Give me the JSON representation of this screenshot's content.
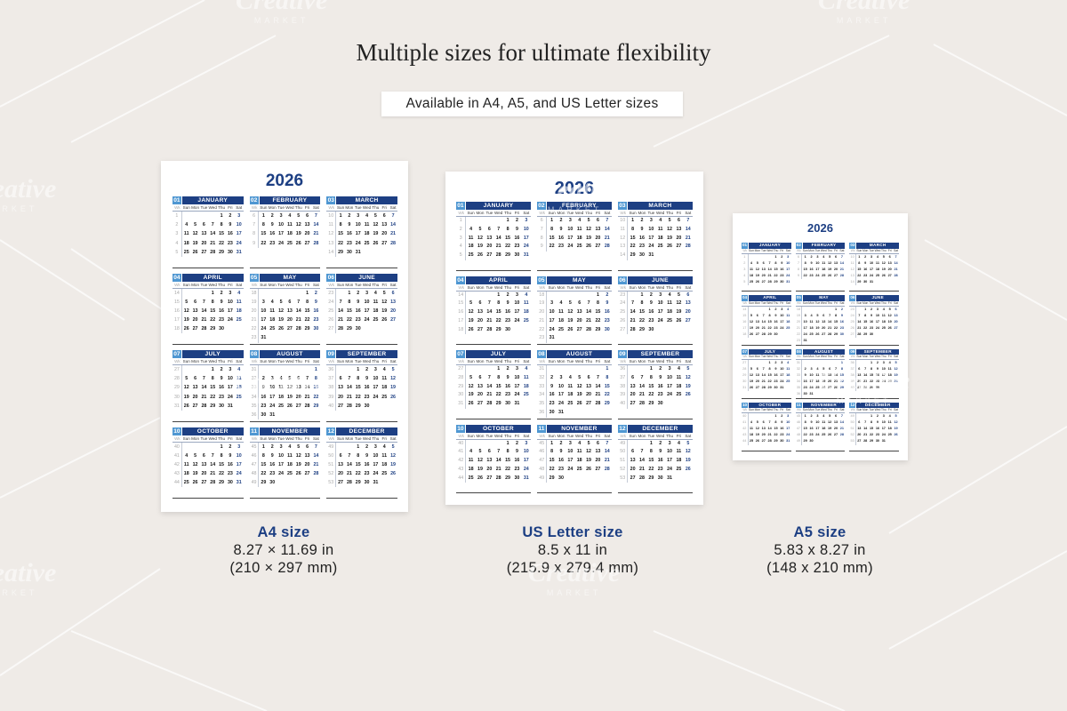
{
  "headline": "Multiple sizes for ultimate flexibility",
  "subtitle": "Available in A4, A5, and US Letter sizes",
  "watermark": {
    "word": "Creative",
    "market": "MARKET"
  },
  "calendar": {
    "year": "2026",
    "week_label": "Wk",
    "weekdays": [
      "Sun",
      "Mon",
      "Tue",
      "Wed",
      "Thu",
      "Fri",
      "Sat"
    ],
    "months": [
      {
        "num": "01",
        "name": "JANUARY",
        "weeks": [
          [
            "1",
            "",
            "",
            "",
            "",
            "1",
            "2",
            "3"
          ],
          [
            "2",
            "4",
            "5",
            "6",
            "7",
            "8",
            "9",
            "10"
          ],
          [
            "3",
            "11",
            "12",
            "13",
            "14",
            "15",
            "16",
            "17"
          ],
          [
            "4",
            "18",
            "19",
            "20",
            "21",
            "22",
            "23",
            "24"
          ],
          [
            "5",
            "25",
            "26",
            "27",
            "28",
            "29",
            "30",
            "31"
          ]
        ]
      },
      {
        "num": "02",
        "name": "FEBRUARY",
        "weeks": [
          [
            "6",
            "1",
            "2",
            "3",
            "4",
            "5",
            "6",
            "7"
          ],
          [
            "7",
            "8",
            "9",
            "10",
            "11",
            "12",
            "13",
            "14"
          ],
          [
            "8",
            "15",
            "16",
            "17",
            "18",
            "19",
            "20",
            "21"
          ],
          [
            "9",
            "22",
            "23",
            "24",
            "25",
            "26",
            "27",
            "28"
          ]
        ]
      },
      {
        "num": "03",
        "name": "MARCH",
        "weeks": [
          [
            "10",
            "1",
            "2",
            "3",
            "4",
            "5",
            "6",
            "7"
          ],
          [
            "11",
            "8",
            "9",
            "10",
            "11",
            "12",
            "13",
            "14"
          ],
          [
            "12",
            "15",
            "16",
            "17",
            "18",
            "19",
            "20",
            "21"
          ],
          [
            "13",
            "22",
            "23",
            "24",
            "25",
            "26",
            "27",
            "28"
          ],
          [
            "14",
            "29",
            "30",
            "31",
            "",
            "",
            "",
            ""
          ]
        ]
      },
      {
        "num": "04",
        "name": "APRIL",
        "weeks": [
          [
            "14",
            "",
            "",
            "",
            "1",
            "2",
            "3",
            "4"
          ],
          [
            "15",
            "5",
            "6",
            "7",
            "8",
            "9",
            "10",
            "11"
          ],
          [
            "16",
            "12",
            "13",
            "14",
            "15",
            "16",
            "17",
            "18"
          ],
          [
            "17",
            "19",
            "20",
            "21",
            "22",
            "23",
            "24",
            "25"
          ],
          [
            "18",
            "26",
            "27",
            "28",
            "29",
            "30",
            "",
            ""
          ]
        ]
      },
      {
        "num": "05",
        "name": "MAY",
        "weeks": [
          [
            "18",
            "",
            "",
            "",
            "",
            "",
            "1",
            "2"
          ],
          [
            "19",
            "3",
            "4",
            "5",
            "6",
            "7",
            "8",
            "9"
          ],
          [
            "20",
            "10",
            "11",
            "12",
            "13",
            "14",
            "15",
            "16"
          ],
          [
            "21",
            "17",
            "18",
            "19",
            "20",
            "21",
            "22",
            "23"
          ],
          [
            "22",
            "24",
            "25",
            "26",
            "27",
            "28",
            "29",
            "30"
          ],
          [
            "23",
            "31",
            "",
            "",
            "",
            "",
            "",
            ""
          ]
        ]
      },
      {
        "num": "06",
        "name": "JUNE",
        "weeks": [
          [
            "23",
            "",
            "1",
            "2",
            "3",
            "4",
            "5",
            "6"
          ],
          [
            "24",
            "7",
            "8",
            "9",
            "10",
            "11",
            "12",
            "13"
          ],
          [
            "25",
            "14",
            "15",
            "16",
            "17",
            "18",
            "19",
            "20"
          ],
          [
            "26",
            "21",
            "22",
            "23",
            "24",
            "25",
            "26",
            "27"
          ],
          [
            "27",
            "28",
            "29",
            "30",
            "",
            "",
            "",
            ""
          ]
        ]
      },
      {
        "num": "07",
        "name": "JULY",
        "weeks": [
          [
            "27",
            "",
            "",
            "",
            "1",
            "2",
            "3",
            "4"
          ],
          [
            "28",
            "5",
            "6",
            "7",
            "8",
            "9",
            "10",
            "11"
          ],
          [
            "29",
            "12",
            "13",
            "14",
            "15",
            "16",
            "17",
            "18"
          ],
          [
            "30",
            "19",
            "20",
            "21",
            "22",
            "23",
            "24",
            "25"
          ],
          [
            "31",
            "26",
            "27",
            "28",
            "29",
            "30",
            "31",
            ""
          ]
        ]
      },
      {
        "num": "08",
        "name": "AUGUST",
        "weeks": [
          [
            "31",
            "",
            "",
            "",
            "",
            "",
            "",
            "1"
          ],
          [
            "32",
            "2",
            "3",
            "4",
            "5",
            "6",
            "7",
            "8"
          ],
          [
            "33",
            "9",
            "10",
            "11",
            "12",
            "13",
            "14",
            "15"
          ],
          [
            "34",
            "16",
            "17",
            "18",
            "19",
            "20",
            "21",
            "22"
          ],
          [
            "35",
            "23",
            "24",
            "25",
            "26",
            "27",
            "28",
            "29"
          ],
          [
            "36",
            "30",
            "31",
            "",
            "",
            "",
            "",
            ""
          ]
        ]
      },
      {
        "num": "09",
        "name": "SEPTEMBER",
        "weeks": [
          [
            "36",
            "",
            "",
            "1",
            "2",
            "3",
            "4",
            "5"
          ],
          [
            "37",
            "6",
            "7",
            "8",
            "9",
            "10",
            "11",
            "12"
          ],
          [
            "38",
            "13",
            "14",
            "15",
            "16",
            "17",
            "18",
            "19"
          ],
          [
            "39",
            "20",
            "21",
            "22",
            "23",
            "24",
            "25",
            "26"
          ],
          [
            "40",
            "27",
            "28",
            "29",
            "30",
            "",
            "",
            ""
          ]
        ]
      },
      {
        "num": "10",
        "name": "OCTOBER",
        "weeks": [
          [
            "40",
            "",
            "",
            "",
            "",
            "1",
            "2",
            "3"
          ],
          [
            "41",
            "4",
            "5",
            "6",
            "7",
            "8",
            "9",
            "10"
          ],
          [
            "42",
            "11",
            "12",
            "13",
            "14",
            "15",
            "16",
            "17"
          ],
          [
            "43",
            "18",
            "19",
            "20",
            "21",
            "22",
            "23",
            "24"
          ],
          [
            "44",
            "25",
            "26",
            "27",
            "28",
            "29",
            "30",
            "31"
          ]
        ]
      },
      {
        "num": "11",
        "name": "NOVEMBER",
        "weeks": [
          [
            "45",
            "1",
            "2",
            "3",
            "4",
            "5",
            "6",
            "7"
          ],
          [
            "46",
            "8",
            "9",
            "10",
            "11",
            "12",
            "13",
            "14"
          ],
          [
            "47",
            "15",
            "16",
            "17",
            "18",
            "19",
            "20",
            "21"
          ],
          [
            "48",
            "22",
            "23",
            "24",
            "25",
            "26",
            "27",
            "28"
          ],
          [
            "49",
            "29",
            "30",
            "",
            "",
            "",
            "",
            ""
          ]
        ]
      },
      {
        "num": "12",
        "name": "DECEMBER",
        "weeks": [
          [
            "49",
            "",
            "",
            "1",
            "2",
            "3",
            "4",
            "5"
          ],
          [
            "50",
            "6",
            "7",
            "8",
            "9",
            "10",
            "11",
            "12"
          ],
          [
            "51",
            "13",
            "14",
            "15",
            "16",
            "17",
            "18",
            "19"
          ],
          [
            "52",
            "20",
            "21",
            "22",
            "23",
            "24",
            "25",
            "26"
          ],
          [
            "53",
            "27",
            "28",
            "29",
            "30",
            "31",
            "",
            ""
          ]
        ]
      }
    ]
  },
  "sizes": [
    {
      "title": "A4 size",
      "dimensions": "8.27 × 11.69 in",
      "metric": "(210 × 297 mm)"
    },
    {
      "title": "US Letter size",
      "dimensions": "8.5 x 11 in",
      "metric": "(215.9 x 279.4 mm)"
    },
    {
      "title": "A5 size",
      "dimensions": "5.83 x 8.27 in",
      "metric": "(148 x 210 mm)"
    }
  ]
}
